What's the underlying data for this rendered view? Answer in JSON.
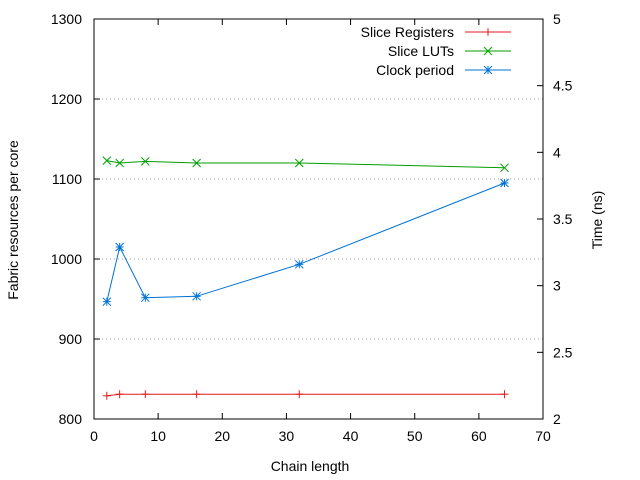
{
  "chart_data": {
    "type": "line",
    "xlabel": "Chain length",
    "ylabel": "Fabric resources per core",
    "y2label": "Time (ns)",
    "xlim": [
      0,
      70
    ],
    "ylim": [
      800,
      1300
    ],
    "y2lim": [
      2,
      5
    ],
    "xticks": [
      "0",
      "10",
      "20",
      "30",
      "40",
      "50",
      "60",
      "70"
    ],
    "yticks": [
      "800",
      "900",
      "1000",
      "1100",
      "1200",
      "1300"
    ],
    "y2ticks": [
      "2",
      "2.5",
      "3",
      "3.5",
      "4",
      "4.5",
      "5"
    ],
    "grid": "horizontal dotted",
    "legend_position": "top-right",
    "series": [
      {
        "name": "Slice Registers",
        "axis": "left",
        "color": "#e41a1c",
        "marker": "plus",
        "points": [
          [
            2,
            829
          ],
          [
            4,
            831
          ],
          [
            8,
            831
          ],
          [
            16,
            831
          ],
          [
            32,
            831
          ],
          [
            64,
            831
          ]
        ]
      },
      {
        "name": "Slice LUTs",
        "axis": "left",
        "color": "#00a000",
        "marker": "x",
        "points": [
          [
            2,
            1123
          ],
          [
            4,
            1120
          ],
          [
            8,
            1122
          ],
          [
            16,
            1120
          ],
          [
            32,
            1120
          ],
          [
            64,
            1114
          ]
        ]
      },
      {
        "name": "Clock period",
        "axis": "right",
        "color": "#0072d6",
        "marker": "star",
        "points": [
          [
            2,
            2.88
          ],
          [
            4,
            3.29
          ],
          [
            8,
            2.91
          ],
          [
            16,
            2.92
          ],
          [
            32,
            3.16
          ],
          [
            64,
            3.77
          ]
        ]
      }
    ]
  }
}
